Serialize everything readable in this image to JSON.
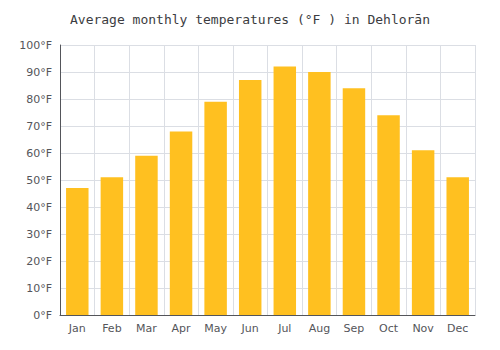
{
  "chart_data": {
    "type": "bar",
    "title": "Average monthly temperatures (°F ) in Dehlorān",
    "categories": [
      "Jan",
      "Feb",
      "Mar",
      "Apr",
      "May",
      "Jun",
      "Jul",
      "Aug",
      "Sep",
      "Oct",
      "Nov",
      "Dec"
    ],
    "values": [
      47,
      51,
      59,
      68,
      79,
      87,
      92,
      90,
      84,
      74,
      61,
      51
    ],
    "color": "#FFC020",
    "ylim": [
      0,
      100
    ],
    "yticks": [
      {
        "value": 0,
        "label": "0°F"
      },
      {
        "value": 10,
        "label": "10°F"
      },
      {
        "value": 20,
        "label": "20°F"
      },
      {
        "value": 30,
        "label": "30°F"
      },
      {
        "value": 40,
        "label": "40°F"
      },
      {
        "value": 50,
        "label": "50°F"
      },
      {
        "value": 60,
        "label": "60°F"
      },
      {
        "value": 70,
        "label": "70°F"
      },
      {
        "value": 80,
        "label": "80°F"
      },
      {
        "value": 90,
        "label": "90°F"
      },
      {
        "value": 100,
        "label": "100°F"
      }
    ],
    "grid": true
  }
}
